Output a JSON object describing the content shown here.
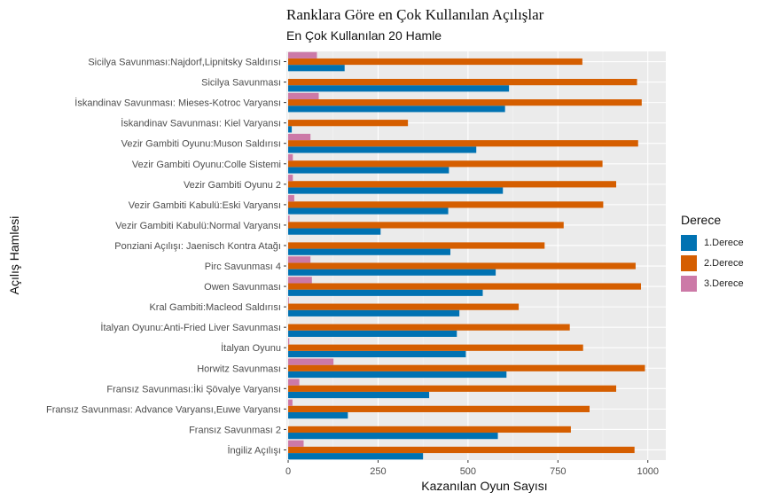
{
  "chart_data": {
    "type": "bar",
    "orientation": "horizontal",
    "title": "Ranklara Göre en Çok Kullanılan Açılışlar",
    "subtitle": "En Çok Kullanılan 20 Hamle",
    "xlabel": "Kazanılan Oyun Sayısı",
    "ylabel": "Açılış Hamlesi",
    "xlim": [
      -5,
      1050
    ],
    "xticks": [
      0,
      250,
      500,
      750,
      1000
    ],
    "grid": true,
    "legend_position": "right",
    "legend_title": "Derece",
    "categories": [
      "Sicilya Savunması:Najdorf,Lipnitsky Saldırısı",
      "Sicilya Savunması",
      "İskandinav Savunması: Mieses-Kotroc Varyansı",
      "İskandinav Savunması: Kiel Varyansı",
      "Vezir Gambiti Oyunu:Muson Saldırısı",
      "Vezir Gambiti Oyunu:Colle Sistemi",
      "Vezir Gambiti Oyunu 2",
      "Vezir Gambiti Kabulü:Eski Varyansı",
      "Vezir Gambiti Kabulü:Normal Varyansı",
      "Ponziani Açılışı: Jaenisch Kontra Atağı",
      "Pirc Savunması 4",
      "Owen Savunması",
      "Kral Gambiti:Macleod Saldırısı",
      "İtalyan Oyunu:Anti-Fried Liver Savunması",
      "İtalyan Oyunu",
      "Horwitz Savunması",
      "Fransız Savunması:İki Şövalye Varyansı",
      "Fransız Savunması: Advance Varyansı,Euwe Varyansı",
      "Fransız Savunması 2",
      "İngiliz Açılışı"
    ],
    "series": [
      {
        "name": "1.Derece",
        "color": "#0072B2",
        "values": [
          157,
          614,
          603,
          10,
          523,
          447,
          597,
          445,
          257,
          451,
          577,
          541,
          476,
          469,
          494,
          607,
          392,
          166,
          583,
          375
        ]
      },
      {
        "name": "2.Derece",
        "color": "#D55E00",
        "values": [
          818,
          970,
          983,
          333,
          973,
          874,
          912,
          876,
          766,
          713,
          966,
          981,
          641,
          783,
          820,
          992,
          912,
          838,
          786,
          963
        ]
      },
      {
        "name": "3.Derece",
        "color": "#CC79A7",
        "values": [
          80,
          0,
          85,
          0,
          62,
          13,
          13,
          17,
          4,
          0,
          62,
          66,
          2,
          0,
          3,
          126,
          31,
          12,
          0,
          43
        ]
      }
    ]
  }
}
